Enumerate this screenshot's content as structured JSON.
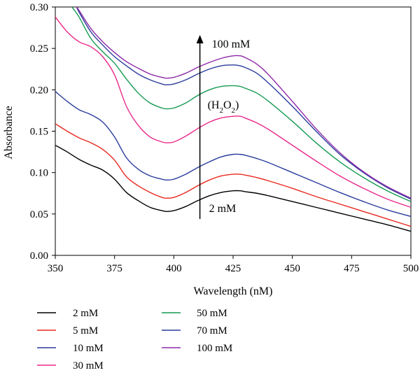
{
  "chart_data": {
    "type": "line",
    "xlabel": "Wavelength (nM)",
    "ylabel": "Absorbance",
    "xlim": [
      350,
      500
    ],
    "ylim": [
      0,
      0.3
    ],
    "xticks": [
      350,
      375,
      400,
      425,
      450,
      475,
      500
    ],
    "yticks": [
      0.0,
      0.05,
      0.1,
      0.15,
      0.2,
      0.25,
      0.3
    ],
    "grid": false,
    "legend_placement": "bottom, two columns",
    "annotations": {
      "arrow_top_label": "100 mM",
      "arrow_bottom_label": "2 mM",
      "arrow_middle_label": "(H2O2)",
      "arrow_direction": "up",
      "arrow_x": 411
    },
    "series": [
      {
        "name": "2 mM",
        "color": "#000000",
        "x": [
          350,
          355,
          360,
          365,
          370,
          375,
          380,
          385,
          390,
          395,
          397,
          400,
          405,
          410,
          415,
          420,
          425,
          428,
          430,
          435,
          440,
          450,
          460,
          470,
          480,
          490,
          500
        ],
        "y": [
          0.133,
          0.125,
          0.116,
          0.109,
          0.103,
          0.092,
          0.076,
          0.066,
          0.058,
          0.054,
          0.053,
          0.054,
          0.059,
          0.066,
          0.072,
          0.076,
          0.078,
          0.078,
          0.077,
          0.075,
          0.072,
          0.065,
          0.058,
          0.051,
          0.044,
          0.037,
          0.029
        ]
      },
      {
        "name": "5 mM",
        "color": "#e8281e",
        "x": [
          350,
          355,
          360,
          365,
          370,
          375,
          380,
          385,
          390,
          395,
          397,
          400,
          405,
          410,
          415,
          420,
          425,
          428,
          430,
          435,
          440,
          450,
          460,
          470,
          480,
          490,
          500
        ],
        "y": [
          0.159,
          0.15,
          0.142,
          0.136,
          0.128,
          0.115,
          0.095,
          0.084,
          0.076,
          0.07,
          0.069,
          0.07,
          0.076,
          0.084,
          0.091,
          0.096,
          0.098,
          0.098,
          0.097,
          0.094,
          0.09,
          0.081,
          0.071,
          0.062,
          0.053,
          0.044,
          0.035
        ]
      },
      {
        "name": "10 mM",
        "color": "#2a3c9c",
        "x": [
          350,
          355,
          360,
          365,
          370,
          375,
          380,
          385,
          390,
          395,
          397,
          400,
          405,
          410,
          415,
          420,
          425,
          428,
          430,
          435,
          440,
          450,
          460,
          470,
          480,
          490,
          500
        ],
        "y": [
          0.198,
          0.186,
          0.176,
          0.17,
          0.161,
          0.143,
          0.118,
          0.104,
          0.096,
          0.092,
          0.091,
          0.092,
          0.098,
          0.106,
          0.113,
          0.119,
          0.122,
          0.122,
          0.121,
          0.117,
          0.112,
          0.1,
          0.088,
          0.076,
          0.065,
          0.055,
          0.047
        ]
      },
      {
        "name": "30 mM",
        "color": "#e8298a",
        "x": [
          350,
          355,
          360,
          365,
          370,
          375,
          380,
          385,
          390,
          395,
          397,
          400,
          405,
          410,
          415,
          420,
          425,
          428,
          430,
          435,
          440,
          450,
          460,
          470,
          480,
          490,
          500
        ],
        "y": [
          0.288,
          0.27,
          0.258,
          0.252,
          0.24,
          0.218,
          0.18,
          0.157,
          0.143,
          0.137,
          0.136,
          0.137,
          0.144,
          0.153,
          0.161,
          0.166,
          0.168,
          0.168,
          0.166,
          0.16,
          0.152,
          0.133,
          0.114,
          0.096,
          0.081,
          0.068,
          0.058
        ]
      },
      {
        "name": "50 mM",
        "color": "#159a52",
        "x": [
          357,
          360,
          365,
          370,
          375,
          380,
          385,
          390,
          395,
          397,
          400,
          405,
          410,
          415,
          420,
          425,
          428,
          430,
          435,
          440,
          450,
          460,
          470,
          480,
          490,
          500
        ],
        "y": [
          0.3,
          0.288,
          0.262,
          0.246,
          0.232,
          0.213,
          0.196,
          0.184,
          0.178,
          0.177,
          0.178,
          0.184,
          0.193,
          0.2,
          0.204,
          0.205,
          0.204,
          0.202,
          0.196,
          0.186,
          0.162,
          0.136,
          0.113,
          0.094,
          0.078,
          0.065
        ]
      },
      {
        "name": "70 mM",
        "color": "#2a3c9c",
        "x": [
          359,
          360,
          365,
          370,
          375,
          380,
          385,
          390,
          395,
          397,
          400,
          405,
          410,
          415,
          420,
          425,
          428,
          430,
          435,
          440,
          450,
          460,
          470,
          480,
          490,
          500
        ],
        "y": [
          0.3,
          0.294,
          0.27,
          0.254,
          0.24,
          0.229,
          0.219,
          0.212,
          0.207,
          0.206,
          0.207,
          0.212,
          0.219,
          0.225,
          0.229,
          0.23,
          0.229,
          0.227,
          0.22,
          0.208,
          0.18,
          0.15,
          0.122,
          0.1,
          0.082,
          0.068
        ]
      },
      {
        "name": "100 mM",
        "color": "#8e2aa8",
        "x": [
          359,
          360,
          365,
          370,
          375,
          380,
          385,
          390,
          395,
          397,
          400,
          405,
          410,
          415,
          420,
          425,
          428,
          430,
          435,
          440,
          450,
          460,
          470,
          480,
          490,
          500
        ],
        "y": [
          0.3,
          0.296,
          0.274,
          0.258,
          0.245,
          0.234,
          0.226,
          0.219,
          0.215,
          0.214,
          0.215,
          0.22,
          0.227,
          0.233,
          0.238,
          0.241,
          0.241,
          0.239,
          0.231,
          0.218,
          0.186,
          0.153,
          0.124,
          0.101,
          0.083,
          0.069
        ]
      }
    ]
  }
}
